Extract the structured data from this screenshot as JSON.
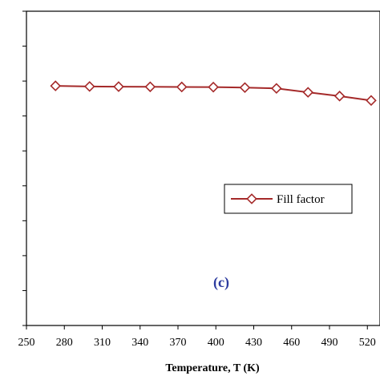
{
  "chart_data": {
    "type": "line",
    "title": "",
    "xlabel": "Temperature, T (K)",
    "ylabel": "",
    "xlim": [
      250,
      530
    ],
    "ylim": [
      0,
      1
    ],
    "xticks": [
      250,
      280,
      310,
      340,
      370,
      400,
      430,
      460,
      490,
      520
    ],
    "grid": false,
    "legend_position": "middle-right",
    "panel_label": "(c)",
    "colors": {
      "series": "#a52a2a",
      "marker_fill": "#ffffff",
      "panel_label": "#2b3a9f",
      "axis": "#000000"
    },
    "series": [
      {
        "name": "Fill factor",
        "x": [
          273,
          300,
          323,
          348,
          373,
          398,
          423,
          448,
          473,
          498,
          523
        ],
        "y": [
          0.7625,
          0.7605,
          0.76,
          0.7595,
          0.759,
          0.7585,
          0.757,
          0.7545,
          0.742,
          0.73,
          0.716
        ]
      }
    ]
  }
}
